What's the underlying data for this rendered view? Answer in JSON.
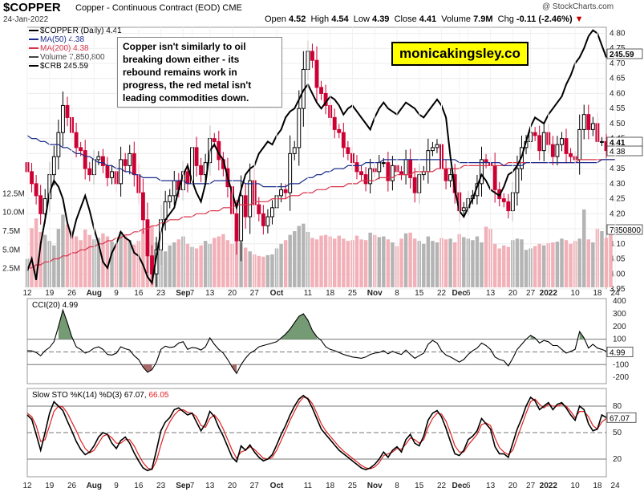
{
  "header": {
    "symbol": "$COPPER",
    "name": "Copper - Continuous Contract (EOD) CME",
    "date": "24-Jan-2022",
    "source": "@ StockCharts.com",
    "open_label": "Open",
    "open": "4.52",
    "high_label": "High",
    "high": "4.54",
    "low_label": "Low",
    "low": "4.39",
    "close_label": "Close",
    "close": "4.41",
    "volume_label": "Volume",
    "volume": "7.9M",
    "chg_label": "Chg",
    "chg": "-0.11 (-2.46%)"
  },
  "legend": {
    "main": "$COPPER (Daily) 4.41",
    "ma50": "MA(50) 4.38",
    "ma200": "MA(200) 4.38",
    "volume": "Volume 7,850,800",
    "crb": "$CRB 245.59"
  },
  "annotation": "Copper isn't similarly to oil breaking down either - its rebound remains work in progress, the red metal isn't leading commodities down.",
  "watermark": "monicakingsley.co",
  "colors": {
    "up": "#000000",
    "down": "#cc0033",
    "ma50": "#1c2c8c",
    "ma200": "#d8334a",
    "crb": "#000000",
    "vol_up": "#b4b4b4",
    "vol_down": "#f2b0b8",
    "cci_pos": "#5c8a5c",
    "cci_neg": "#9a5050",
    "stoK": "#000000",
    "stoD": "#e02020"
  },
  "panel_cci": {
    "label": "CCI(20) 4.99",
    "value_tag": "4.99",
    "levels": [
      "400",
      "300",
      "200",
      "100",
      "0",
      "-100",
      "-200"
    ]
  },
  "panel_sto": {
    "label_prefix": "Slow STO %K(14) %D(3) 67.07,",
    "label_d": "66.05",
    "value_tag": "67.07",
    "levels": [
      "80",
      "50",
      "20"
    ]
  },
  "value_tags": {
    "close": "4.41",
    "ma": "4.38",
    "crb": "245.59",
    "volume": "7850800"
  },
  "chart_data": {
    "type": "candlestick",
    "title": "$COPPER",
    "price_axis": {
      "ticks": [
        "4.80",
        "4.75",
        "4.70",
        "4.65",
        "4.60",
        "4.55",
        "4.50",
        "4.45",
        "4.40",
        "4.35",
        "4.30",
        "4.25",
        "4.20",
        "4.15",
        "4.10",
        "4.05",
        "4.00",
        "3.95"
      ],
      "ylim": [
        3.95,
        4.82
      ],
      "side": "right"
    },
    "volume_axis": {
      "ticks": [
        "12.5M",
        "10.0M",
        "7.5M",
        "5.0M",
        "2.5M"
      ],
      "side": "left"
    },
    "x_ticks": [
      {
        "label": "12",
        "idx": 0
      },
      {
        "label": "19",
        "idx": 5
      },
      {
        "label": "26",
        "idx": 10
      },
      {
        "label": "Aug",
        "idx": 15,
        "bold": true
      },
      {
        "label": "9",
        "idx": 20
      },
      {
        "label": "16",
        "idx": 25
      },
      {
        "label": "23",
        "idx": 30
      },
      {
        "label": "Sep",
        "idx": 35,
        "bold": true
      },
      {
        "label": "7",
        "idx": 37
      },
      {
        "label": "13",
        "idx": 41
      },
      {
        "label": "20",
        "idx": 46
      },
      {
        "label": "27",
        "idx": 51
      },
      {
        "label": "Oct",
        "idx": 56,
        "bold": true
      },
      {
        "label": "11",
        "idx": 63
      },
      {
        "label": "18",
        "idx": 68
      },
      {
        "label": "25",
        "idx": 73
      },
      {
        "label": "Nov",
        "idx": 78,
        "bold": true
      },
      {
        "label": "8",
        "idx": 83
      },
      {
        "label": "15",
        "idx": 88
      },
      {
        "label": "22",
        "idx": 93
      },
      {
        "label": "Dec",
        "idx": 97,
        "bold": true
      },
      {
        "label": "6",
        "idx": 99
      },
      {
        "label": "13",
        "idx": 104
      },
      {
        "label": "20",
        "idx": 109
      },
      {
        "label": "27",
        "idx": 113
      },
      {
        "label": "2022",
        "idx": 117,
        "bold": true
      },
      {
        "label": "10",
        "idx": 123
      },
      {
        "label": "18",
        "idx": 128
      },
      {
        "label": "24",
        "idx": 132
      }
    ],
    "close": [
      4.34,
      4.3,
      4.26,
      4.2,
      4.25,
      4.33,
      4.39,
      4.47,
      4.56,
      4.52,
      4.47,
      4.42,
      4.41,
      4.35,
      4.33,
      4.38,
      4.39,
      4.36,
      4.32,
      4.34,
      4.3,
      4.38,
      4.36,
      4.4,
      4.33,
      4.27,
      4.18,
      4.06,
      4.0,
      4.08,
      4.18,
      4.24,
      4.26,
      4.31,
      4.28,
      4.34,
      4.3,
      4.42,
      4.36,
      4.33,
      4.37,
      4.45,
      4.44,
      4.38,
      4.35,
      4.29,
      4.2,
      4.11,
      4.26,
      4.19,
      4.31,
      4.23,
      4.2,
      4.16,
      4.19,
      4.22,
      4.26,
      4.28,
      4.27,
      4.4,
      4.42,
      4.55,
      4.68,
      4.74,
      4.71,
      4.62,
      4.6,
      4.56,
      4.52,
      4.48,
      4.47,
      4.42,
      4.4,
      4.37,
      4.34,
      4.33,
      4.3,
      4.35,
      4.34,
      4.37,
      4.37,
      4.31,
      4.36,
      4.34,
      4.33,
      4.38,
      4.32,
      4.27,
      4.33,
      4.34,
      4.41,
      4.42,
      4.43,
      4.35,
      4.31,
      4.33,
      4.27,
      4.21,
      4.22,
      4.25,
      4.26,
      4.3,
      4.38,
      4.37,
      4.36,
      4.28,
      4.25,
      4.24,
      4.21,
      4.27,
      4.35,
      4.42,
      4.44,
      4.47,
      4.46,
      4.41,
      4.47,
      4.43,
      4.39,
      4.43,
      4.45,
      4.4,
      4.39,
      4.38,
      4.48,
      4.53,
      4.48,
      4.5,
      4.44,
      4.44,
      4.41
    ],
    "ma50": [
      4.46,
      4.45,
      4.45,
      4.44,
      4.44,
      4.43,
      4.43,
      4.43,
      4.42,
      4.42,
      4.41,
      4.4,
      4.4,
      4.39,
      4.39,
      4.38,
      4.37,
      4.37,
      4.36,
      4.36,
      4.35,
      4.35,
      4.34,
      4.34,
      4.33,
      4.33,
      4.32,
      4.32,
      4.32,
      4.32,
      4.31,
      4.31,
      4.31,
      4.31,
      4.31,
      4.31,
      4.3,
      4.3,
      4.3,
      4.3,
      4.3,
      4.3,
      4.31,
      4.31,
      4.31,
      4.31,
      4.31,
      4.31,
      4.31,
      4.3,
      4.3,
      4.3,
      4.3,
      4.29,
      4.29,
      4.29,
      4.29,
      4.29,
      4.29,
      4.3,
      4.3,
      4.3,
      4.31,
      4.32,
      4.32,
      4.33,
      4.33,
      4.34,
      4.34,
      4.35,
      4.35,
      4.35,
      4.36,
      4.36,
      4.36,
      4.36,
      4.37,
      4.37,
      4.37,
      4.37,
      4.38,
      4.38,
      4.38,
      4.38,
      4.38,
      4.38,
      4.38,
      4.38,
      4.38,
      4.38,
      4.38,
      4.38,
      4.38,
      4.38,
      4.38,
      4.38,
      4.38,
      4.37,
      4.37,
      4.37,
      4.37,
      4.37,
      4.37,
      4.37,
      4.37,
      4.37,
      4.37,
      4.36,
      4.36,
      4.36,
      4.36,
      4.36,
      4.37,
      4.37,
      4.37,
      4.37,
      4.37,
      4.37,
      4.37,
      4.37,
      4.37,
      4.37,
      4.37,
      4.37,
      4.37,
      4.37,
      4.37,
      4.37,
      4.37,
      4.38,
      4.38,
      4.38,
      4.38
    ],
    "ma200": [
      4.02,
      4.02,
      4.03,
      4.03,
      4.04,
      4.04,
      4.05,
      4.05,
      4.06,
      4.06,
      4.07,
      4.07,
      4.08,
      4.08,
      4.09,
      4.09,
      4.1,
      4.1,
      4.11,
      4.11,
      4.12,
      4.12,
      4.13,
      4.13,
      4.14,
      4.14,
      4.15,
      4.15,
      4.16,
      4.16,
      4.17,
      4.17,
      4.18,
      4.18,
      4.18,
      4.19,
      4.19,
      4.19,
      4.2,
      4.2,
      4.2,
      4.21,
      4.21,
      4.21,
      4.22,
      4.22,
      4.22,
      4.23,
      4.23,
      4.23,
      4.23,
      4.24,
      4.24,
      4.24,
      4.24,
      4.25,
      4.25,
      4.25,
      4.25,
      4.26,
      4.26,
      4.26,
      4.27,
      4.27,
      4.27,
      4.28,
      4.28,
      4.28,
      4.29,
      4.29,
      4.29,
      4.29,
      4.3,
      4.3,
      4.3,
      4.31,
      4.31,
      4.31,
      4.31,
      4.32,
      4.32,
      4.32,
      4.32,
      4.33,
      4.33,
      4.33,
      4.33,
      4.34,
      4.34,
      4.34,
      4.34,
      4.34,
      4.35,
      4.35,
      4.35,
      4.35,
      4.35,
      4.35,
      4.36,
      4.36,
      4.36,
      4.36,
      4.36,
      4.36,
      4.36,
      4.36,
      4.36,
      4.36,
      4.37,
      4.37,
      4.37,
      4.37,
      4.37,
      4.37,
      4.37,
      4.37,
      4.37,
      4.37,
      4.37,
      4.37,
      4.37,
      4.37,
      4.37,
      4.37,
      4.38,
      4.38,
      4.38,
      4.38,
      4.38,
      4.38,
      4.38,
      4.38,
      4.38
    ],
    "crb": [
      4.01,
      4.05,
      3.98,
      4.1,
      4.18,
      4.27,
      4.31,
      4.29,
      4.25,
      4.17,
      4.12,
      4.18,
      4.22,
      4.26,
      4.21,
      4.15,
      4.1,
      4.04,
      4.02,
      4.07,
      4.1,
      4.14,
      4.12,
      4.11,
      4.07,
      4.06,
      4.03,
      3.99,
      3.97,
      4.06,
      4.14,
      4.18,
      4.2,
      4.22,
      4.28,
      4.33,
      4.36,
      4.31,
      4.27,
      4.24,
      4.3,
      4.41,
      4.43,
      4.4,
      4.38,
      4.32,
      4.27,
      4.22,
      4.28,
      4.33,
      4.35,
      4.36,
      4.4,
      4.42,
      4.44,
      4.43,
      4.46,
      4.48,
      4.52,
      4.54,
      4.55,
      4.58,
      4.61,
      4.63,
      4.6,
      4.57,
      4.55,
      4.57,
      4.59,
      4.58,
      4.56,
      4.53,
      4.55,
      4.56,
      4.54,
      4.52,
      4.5,
      4.48,
      4.52,
      4.55,
      4.57,
      4.55,
      4.54,
      4.53,
      4.55,
      4.57,
      4.56,
      4.55,
      4.53,
      4.52,
      4.54,
      4.56,
      4.58,
      4.56,
      4.52,
      4.39,
      4.28,
      4.21,
      4.19,
      4.22,
      4.25,
      4.29,
      4.33,
      4.31,
      4.28,
      4.27,
      4.26,
      4.29,
      4.33,
      4.34,
      4.36,
      4.39,
      4.44,
      4.49,
      4.52,
      4.51,
      4.5,
      4.53,
      4.55,
      4.57,
      4.59,
      4.63,
      4.66,
      4.7,
      4.72,
      4.75,
      4.79,
      4.81,
      4.8,
      4.76,
      4.72
    ],
    "volume_m": [
      3.8,
      7.9,
      9.2,
      7.4,
      7.0,
      6.2,
      5.6,
      7.8,
      9.7,
      8.4,
      7.5,
      6.8,
      6.3,
      7.7,
      7.0,
      6.4,
      6.6,
      7.2,
      6.8,
      6.1,
      5.8,
      7.4,
      6.9,
      6.3,
      5.7,
      6.2,
      7.6,
      8.5,
      8.2,
      6.0,
      5.2,
      4.8,
      5.6,
      6.0,
      6.4,
      6.8,
      5.8,
      5.4,
      5.2,
      5.6,
      6.2,
      5.8,
      6.6,
      6.8,
      7.1,
      6.3,
      5.8,
      8.0,
      6.0,
      5.3,
      4.8,
      4.4,
      4.2,
      4.1,
      4.3,
      4.4,
      5.2,
      5.8,
      6.3,
      7.0,
      7.5,
      8.2,
      8.5,
      7.4,
      6.6,
      6.4,
      6.9,
      7.0,
      6.8,
      6.5,
      6.9,
      6.5,
      6.2,
      6.3,
      6.9,
      6.4,
      6.3,
      7.3,
      7.0,
      6.7,
      6.8,
      6.4,
      6.0,
      5.5,
      6.5,
      7.2,
      7.3,
      6.5,
      6.2,
      5.8,
      6.8,
      6.2,
      6.0,
      6.6,
      6.4,
      6.5,
      6.0,
      7.1,
      6.7,
      6.5,
      6.3,
      6.8,
      6.0,
      8.1,
      7.8,
      5.8,
      5.2,
      5.6,
      5.4,
      6.3,
      6.5,
      6.4,
      5.0,
      5.2,
      5.5,
      5.8,
      5.6,
      5.9,
      6.0,
      6.1,
      6.5,
      6.3,
      5.8,
      6.2,
      6.5,
      10.4,
      6.4,
      6.0,
      7.8,
      7.5,
      6.6,
      7.9
    ],
    "cci": [
      10,
      8,
      -5,
      -30,
      10,
      35,
      80,
      200,
      330,
      230,
      120,
      40,
      20,
      -10,
      5,
      30,
      40,
      20,
      -20,
      -25,
      -10,
      40,
      25,
      15,
      -30,
      -60,
      -120,
      -160,
      -140,
      -80,
      20,
      45,
      35,
      40,
      70,
      80,
      20,
      35,
      30,
      15,
      40,
      110,
      60,
      20,
      -10,
      -60,
      -120,
      -170,
      -100,
      -50,
      -10,
      10,
      40,
      50,
      60,
      70,
      80,
      110,
      140,
      180,
      230,
      280,
      300,
      250,
      170,
      120,
      90,
      40,
      20,
      10,
      -5,
      -20,
      -30,
      -40,
      -45,
      -50,
      -40,
      -20,
      -10,
      -5,
      10,
      -15,
      5,
      -10,
      -20,
      15,
      -20,
      -50,
      -30,
      -10,
      60,
      90,
      70,
      10,
      -25,
      -40,
      -60,
      -80,
      -60,
      -20,
      10,
      30,
      70,
      50,
      20,
      -40,
      -60,
      -70,
      -110,
      -50,
      20,
      60,
      100,
      130,
      110,
      70,
      90,
      80,
      50,
      50,
      20,
      -10,
      5,
      20,
      160,
      110,
      30,
      60,
      30,
      20,
      5
    ],
    "stoK": [
      70,
      65,
      48,
      30,
      50,
      72,
      85,
      80,
      75,
      63,
      52,
      40,
      31,
      25,
      28,
      35,
      45,
      50,
      48,
      38,
      32,
      41,
      45,
      38,
      27,
      18,
      10,
      7,
      9,
      30,
      52,
      62,
      67,
      76,
      78,
      74,
      70,
      72,
      62,
      52,
      60,
      74,
      68,
      56,
      46,
      34,
      22,
      17,
      35,
      30,
      36,
      28,
      22,
      18,
      20,
      25,
      36,
      48,
      58,
      70,
      80,
      88,
      92,
      88,
      78,
      66,
      54,
      48,
      42,
      36,
      30,
      26,
      22,
      18,
      14,
      10,
      8,
      10,
      14,
      20,
      28,
      22,
      30,
      34,
      28,
      42,
      48,
      38,
      35,
      46,
      64,
      72,
      75,
      68,
      55,
      40,
      26,
      24,
      30,
      42,
      46,
      52,
      66,
      60,
      54,
      34,
      26,
      26,
      22,
      38,
      54,
      66,
      80,
      90,
      86,
      76,
      80,
      84,
      76,
      82,
      84,
      78,
      70,
      64,
      80,
      76,
      60,
      52,
      54,
      70,
      67
    ],
    "stoD": [
      72,
      68,
      58,
      40,
      42,
      58,
      74,
      80,
      79,
      72,
      62,
      52,
      41,
      32,
      27,
      30,
      38,
      46,
      48,
      44,
      38,
      38,
      42,
      42,
      35,
      25,
      16,
      10,
      8,
      18,
      36,
      52,
      62,
      70,
      75,
      76,
      73,
      72,
      68,
      58,
      56,
      66,
      70,
      64,
      54,
      42,
      30,
      21,
      28,
      30,
      34,
      31,
      26,
      21,
      20,
      22,
      30,
      41,
      52,
      64,
      74,
      84,
      90,
      89,
      83,
      72,
      60,
      52,
      46,
      40,
      34,
      29,
      25,
      21,
      17,
      13,
      10,
      9,
      11,
      16,
      24,
      26,
      28,
      32,
      31,
      37,
      44,
      42,
      38,
      42,
      56,
      66,
      72,
      71,
      63,
      50,
      35,
      28,
      28,
      36,
      42,
      48,
      59,
      61,
      58,
      44,
      33,
      28,
      25,
      30,
      44,
      58,
      72,
      85,
      88,
      82,
      78,
      82,
      80,
      80,
      82,
      80,
      74,
      67,
      74,
      74,
      68,
      58,
      54,
      62,
      66
    ]
  }
}
